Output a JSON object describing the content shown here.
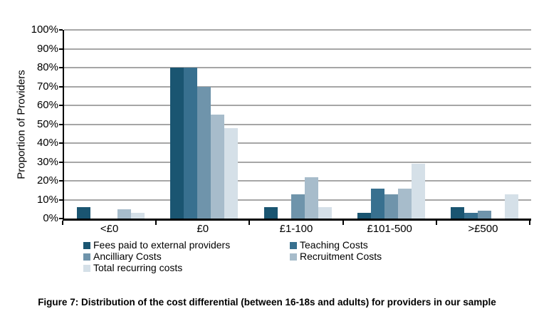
{
  "figure": {
    "caption": "Figure 7: Distribution of the cost differential (between 16-18s and adults) for providers in our sample"
  },
  "chart_data": {
    "type": "bar",
    "title": "",
    "xlabel": "",
    "ylabel": "Proportion of Providers",
    "categories": [
      "<£0",
      "£0",
      "£1-100",
      "£101-500",
      ">£500"
    ],
    "series": [
      {
        "name": "Fees paid to external providers",
        "color": "#1A5571",
        "values": [
          6,
          80,
          6,
          3,
          6
        ]
      },
      {
        "name": "Teaching Costs",
        "color": "#38708F",
        "values": [
          0,
          80,
          0,
          16,
          3
        ]
      },
      {
        "name": "Ancilliary Costs",
        "color": "#6F94AB",
        "values": [
          0,
          70,
          13,
          13,
          4
        ]
      },
      {
        "name": "Recruitment Costs",
        "color": "#A7BCCB",
        "values": [
          5,
          55,
          22,
          16,
          0
        ]
      },
      {
        "name": "Total recurring costs",
        "color": "#D5E0E8",
        "values": [
          3,
          48,
          6,
          29,
          13
        ]
      }
    ],
    "ylim": [
      0,
      100
    ],
    "ytick_step": 10,
    "ytick_labels": [
      "0%",
      "10%",
      "20%",
      "30%",
      "40%",
      "50%",
      "60%",
      "70%",
      "80%",
      "90%",
      "100%"
    ],
    "grid": true,
    "legend_position": "bottom",
    "gridline_color": "#A6A6A6",
    "axis_color": "#000000"
  }
}
